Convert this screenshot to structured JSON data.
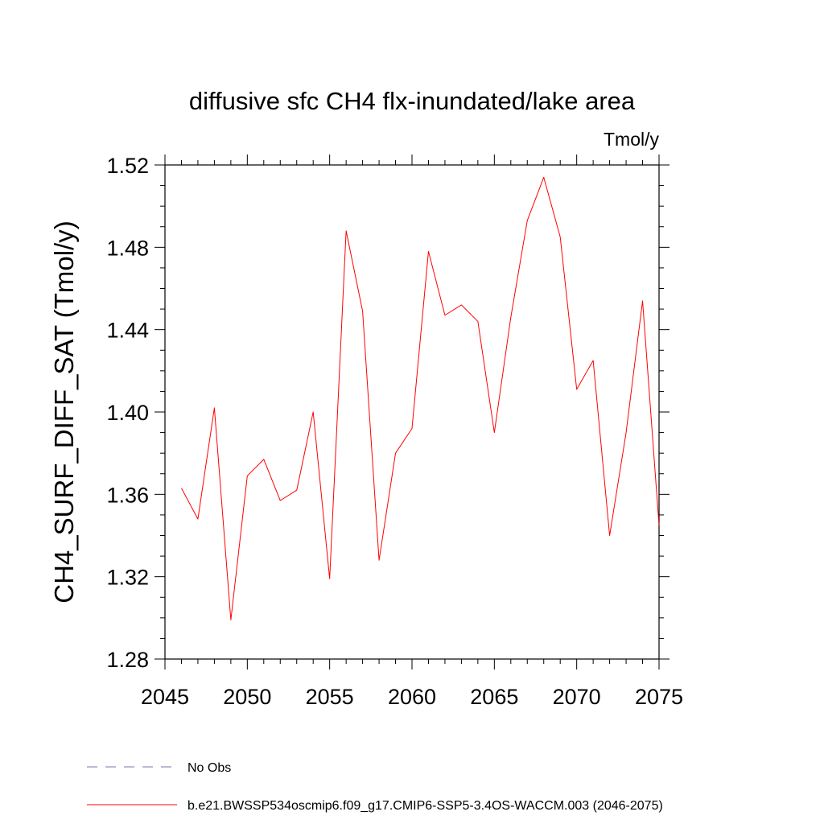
{
  "chart_data": {
    "type": "line",
    "title": "diffusive sfc CH4 flx-inundated/lake area",
    "units_label": "Tmol/y",
    "ylabel": "CH4_SURF_DIFF_SAT  (Tmol/y)",
    "xlabel": "",
    "xlim": [
      2045,
      2075
    ],
    "ylim": [
      1.28,
      1.52
    ],
    "x_ticks": [
      2045,
      2050,
      2055,
      2060,
      2065,
      2070,
      2075
    ],
    "x_tick_labels": [
      "2045",
      "2050",
      "2055",
      "2060",
      "2065",
      "2070",
      "2075"
    ],
    "y_ticks": [
      1.28,
      1.32,
      1.36,
      1.4,
      1.44,
      1.48,
      1.52
    ],
    "y_tick_labels": [
      "1.28",
      "1.32",
      "1.36",
      "1.40",
      "1.44",
      "1.48",
      "1.52"
    ],
    "x_minor_step": 1,
    "y_minor_step": 0.01,
    "grid": false,
    "series": [
      {
        "name": "b.e21.BWSSP534oscmip6.f09_g17.CMIP6-SSP5-3.4OS-WACCM.003 (2046-2075)",
        "color": "#ff0000",
        "x": [
          2046,
          2047,
          2048,
          2049,
          2050,
          2051,
          2052,
          2053,
          2054,
          2055,
          2056,
          2057,
          2058,
          2059,
          2060,
          2061,
          2062,
          2063,
          2064,
          2065,
          2066,
          2067,
          2068,
          2069,
          2070,
          2071,
          2072,
          2073,
          2074,
          2075
        ],
        "values": [
          1.363,
          1.348,
          1.402,
          1.299,
          1.369,
          1.377,
          1.357,
          1.362,
          1.4,
          1.319,
          1.488,
          1.449,
          1.328,
          1.38,
          1.392,
          1.478,
          1.447,
          1.452,
          1.444,
          1.39,
          1.446,
          1.493,
          1.514,
          1.485,
          1.411,
          1.425,
          1.34,
          1.39,
          1.454,
          1.345
        ]
      }
    ],
    "legend": {
      "placement": "bottom-left",
      "entries": [
        {
          "label": "No Obs",
          "color": "#7f6fb0",
          "style": "dashed"
        },
        {
          "label": "b.e21.BWSSP534oscmip6.f09_g17.CMIP6-SSP5-3.4OS-WACCM.003 (2046-2075)",
          "color": "#ff0000",
          "style": "solid"
        }
      ]
    }
  }
}
